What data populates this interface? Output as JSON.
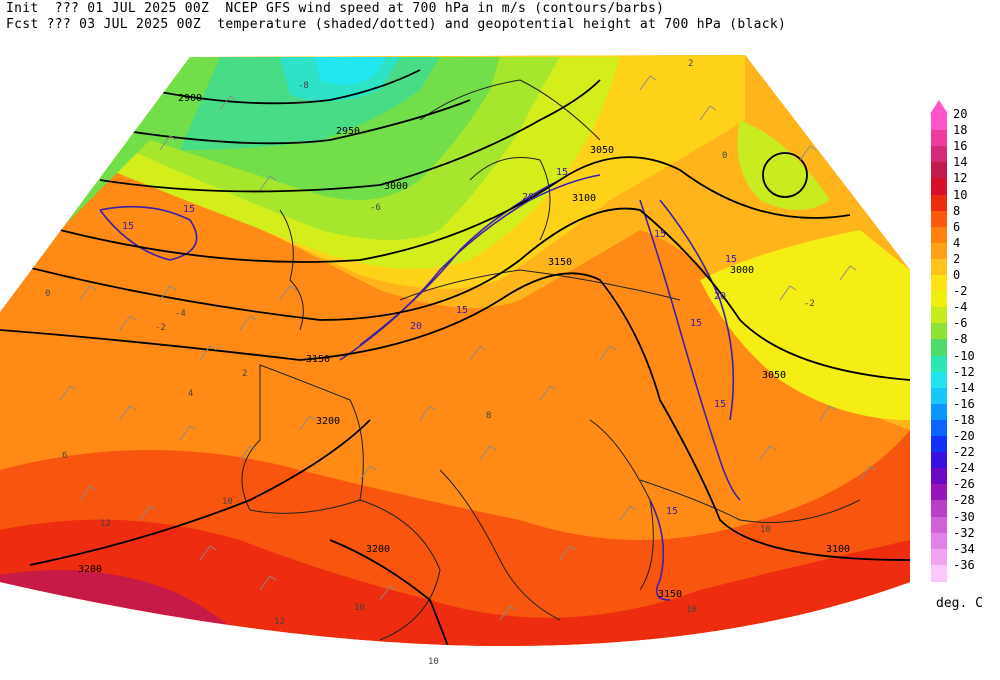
{
  "header": {
    "line1": "Init  ??? 01 JUL 2025 00Z  NCEP GFS wind speed at 700 hPa in m/s (contours/barbs)",
    "line2": "Fcst ??? 03 JUL 2025 00Z  temperature (shaded/dotted) and geopotential height at 700 hPa (black)"
  },
  "legend": {
    "units": "deg. C",
    "levels": [
      {
        "label": "20",
        "color": "#ff55c8"
      },
      {
        "label": "18",
        "color": "#f03aa0"
      },
      {
        "label": "16",
        "color": "#d62a78"
      },
      {
        "label": "14",
        "color": "#c41a50"
      },
      {
        "label": "12",
        "color": "#d80e2a"
      },
      {
        "label": "10",
        "color": "#ee2a10"
      },
      {
        "label": "8",
        "color": "#fa5a0a"
      },
      {
        "label": "6",
        "color": "#ff8210"
      },
      {
        "label": "4",
        "color": "#ffa018"
      },
      {
        "label": "2",
        "color": "#ffc21c"
      },
      {
        "label": "0",
        "color": "#ffe214"
      },
      {
        "label": "-2",
        "color": "#f0f010"
      },
      {
        "label": "-4",
        "color": "#c6ec1e"
      },
      {
        "label": "-6",
        "color": "#90e236"
      },
      {
        "label": "-8",
        "color": "#50dc6c"
      },
      {
        "label": "-10",
        "color": "#2ee6b4"
      },
      {
        "label": "-12",
        "color": "#1ee4ee"
      },
      {
        "label": "-14",
        "color": "#14c8fa"
      },
      {
        "label": "-16",
        "color": "#0a96ff"
      },
      {
        "label": "-18",
        "color": "#0a64ff"
      },
      {
        "label": "-20",
        "color": "#1030ff"
      },
      {
        "label": "-22",
        "color": "#3a10e0"
      },
      {
        "label": "-24",
        "color": "#6a08c4"
      },
      {
        "label": "-26",
        "color": "#9614b8"
      },
      {
        "label": "-28",
        "color": "#b840c4"
      },
      {
        "label": "-30",
        "color": "#d062d8"
      },
      {
        "label": "-32",
        "color": "#e282e8"
      },
      {
        "label": "-34",
        "color": "#f0a4f2"
      },
      {
        "label": "-36",
        "color": "#fac8fa"
      }
    ]
  },
  "map": {
    "height_contour_labels": [
      "2900",
      "2950",
      "3000",
      "3050",
      "3100",
      "3150",
      "3200"
    ],
    "temperature_labels": [
      "-8",
      "-6",
      "-4",
      "-2",
      "0",
      "2",
      "4",
      "6",
      "8",
      "10",
      "12"
    ],
    "wind_speed_labels": [
      "15",
      "20"
    ],
    "colors": {
      "height_contour": "#000000",
      "wind_contour": "#3b20a8",
      "coastline": "#202020",
      "barb": "#909090"
    }
  }
}
